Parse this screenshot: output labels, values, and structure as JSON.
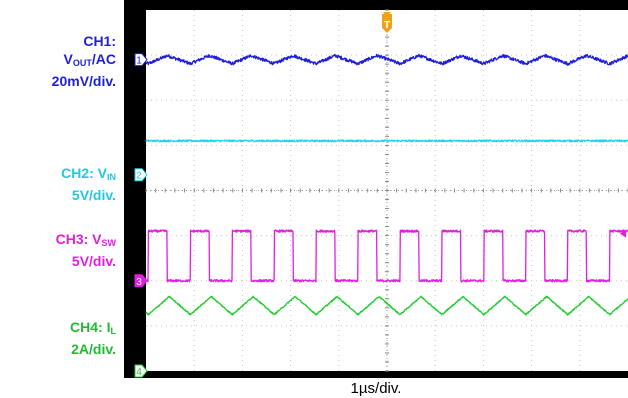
{
  "colors": {
    "ch1": "#1f1fd8",
    "ch2": "#22d3e8",
    "ch3": "#e020e0",
    "ch4": "#22cc33",
    "grid": "#c8c8c8",
    "trigger": "#f0a020"
  },
  "labels": {
    "ch1": {
      "line1": "CH1:",
      "line2_main": "V",
      "line2_sub": "OUT",
      "line2_rest": "/AC",
      "line3": "20mV/div."
    },
    "ch2": {
      "line1_main": "CH2: V",
      "line1_sub": "IN",
      "line2": "5V/div."
    },
    "ch3": {
      "line1_main": "CH3: V",
      "line1_sub": "SW",
      "line2": "5V/div."
    },
    "ch4": {
      "line1_main": "CH4: I",
      "line1_sub": "L",
      "line2": "2A/div."
    }
  },
  "chart_data": {
    "type": "line",
    "xlabel": "1µs/div.",
    "x_divisions": 10,
    "y_divisions": 8,
    "trigger_marker": "T",
    "markers": [
      "1",
      "2",
      "3",
      "4"
    ],
    "series": [
      {
        "name": "CH1",
        "marker": "1",
        "ground_div": 6.9,
        "waveform": "ripple",
        "level_div": 0.0,
        "amplitude_div": 0.18,
        "period_div": 0.87,
        "phase_div": 0.05
      },
      {
        "name": "CH2",
        "marker": "2",
        "ground_div": 4.35,
        "waveform": "flat",
        "level_div": 0.75,
        "amplitude_div": 0.0,
        "period_div": 0.87,
        "phase_div": 0.0
      },
      {
        "name": "CH3",
        "marker": "3",
        "ground_div": 2.0,
        "waveform": "square",
        "level_div": 0.0,
        "amplitude_div": 1.1,
        "period_div": 0.87,
        "phase_div": 0.05,
        "duty": 0.45
      },
      {
        "name": "CH4",
        "marker": "4",
        "ground_div": 0.0,
        "waveform": "triangle",
        "level_div": 1.45,
        "amplitude_div": 0.4,
        "period_div": 0.87,
        "phase_div": 0.05
      }
    ]
  }
}
